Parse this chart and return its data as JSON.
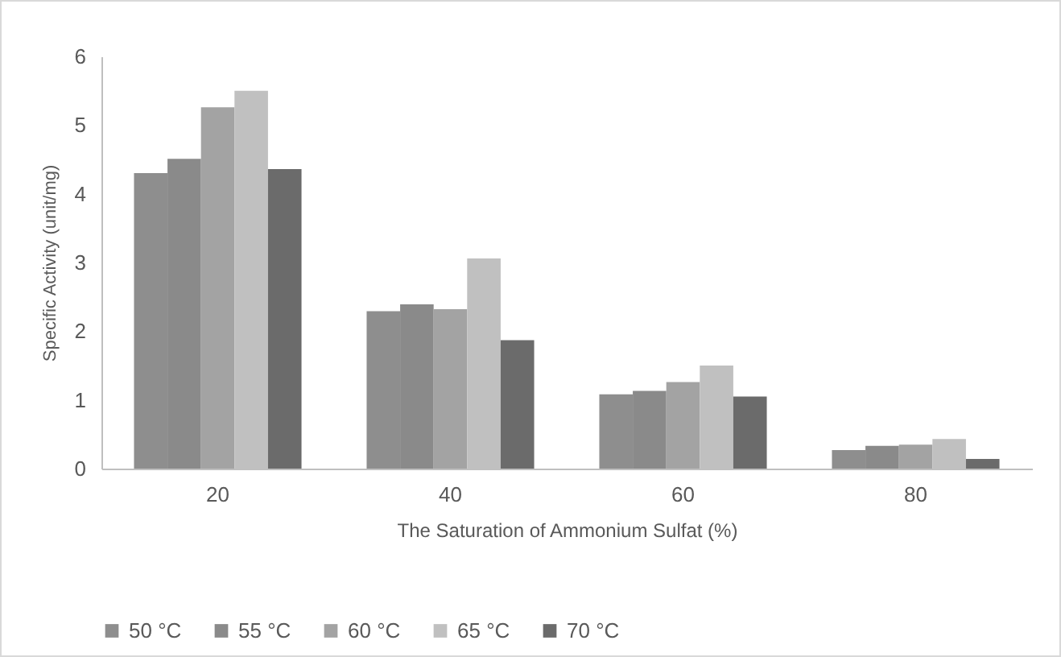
{
  "chart_data": {
    "type": "bar",
    "xlabel": "The Saturation of Ammonium Sulfat (%)",
    "ylabel": "Specific Activity (unit/mg)",
    "categories": [
      "20",
      "40",
      "60",
      "80"
    ],
    "series": [
      {
        "name": "50 °C",
        "color": "#8e8e8e",
        "values": [
          4.3,
          2.29,
          1.08,
          0.27
        ]
      },
      {
        "name": "55 °C",
        "color": "#8a8a8a",
        "values": [
          4.51,
          2.39,
          1.13,
          0.33
        ]
      },
      {
        "name": "60 °C",
        "color": "#a3a3a3",
        "values": [
          5.26,
          2.32,
          1.26,
          0.35
        ]
      },
      {
        "name": "65 °C",
        "color": "#c0c0c0",
        "values": [
          5.5,
          3.06,
          1.5,
          0.43
        ]
      },
      {
        "name": "70 °C",
        "color": "#6b6b6b",
        "values": [
          4.36,
          1.87,
          1.05,
          0.14
        ]
      }
    ],
    "ylim": [
      0,
      6
    ],
    "yticks": [
      0,
      1,
      2,
      3,
      4,
      5,
      6
    ],
    "grid": false,
    "legend": "bottom"
  }
}
